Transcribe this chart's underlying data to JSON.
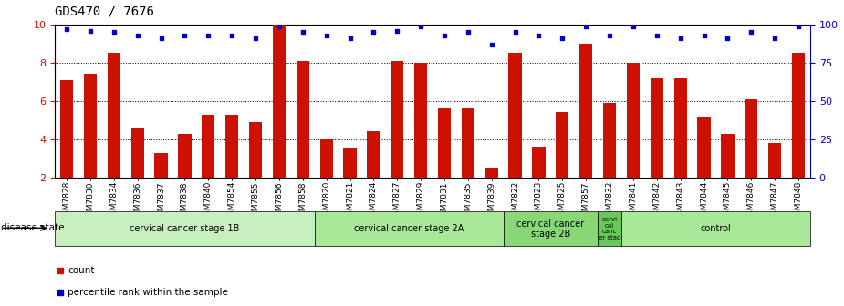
{
  "title": "GDS470 / 7676",
  "samples": [
    "GSM7828",
    "GSM7830",
    "GSM7834",
    "GSM7836",
    "GSM7837",
    "GSM7838",
    "GSM7840",
    "GSM7854",
    "GSM7855",
    "GSM7856",
    "GSM7858",
    "GSM7820",
    "GSM7821",
    "GSM7824",
    "GSM7827",
    "GSM7829",
    "GSM7831",
    "GSM7835",
    "GSM7839",
    "GSM7822",
    "GSM7823",
    "GSM7825",
    "GSM7857",
    "GSM7832",
    "GSM7841",
    "GSM7842",
    "GSM7843",
    "GSM7844",
    "GSM7845",
    "GSM7846",
    "GSM7847",
    "GSM7848"
  ],
  "counts": [
    7.1,
    7.4,
    8.5,
    4.6,
    3.3,
    4.3,
    5.3,
    5.3,
    4.9,
    10.0,
    8.1,
    4.0,
    3.5,
    4.4,
    8.1,
    8.0,
    5.6,
    5.6,
    2.5,
    8.5,
    3.6,
    5.4,
    9.0,
    5.9,
    8.0,
    7.2,
    7.2,
    5.2,
    4.3,
    6.1,
    3.8,
    8.5
  ],
  "percentiles": [
    97,
    96,
    95,
    93,
    91,
    93,
    93,
    93,
    91,
    99,
    95,
    93,
    91,
    95,
    96,
    99,
    93,
    95,
    87,
    95,
    93,
    91,
    99,
    93,
    99,
    93,
    91,
    93,
    91,
    95,
    91,
    99
  ],
  "groups": [
    {
      "label": "cervical cancer stage 1B",
      "start": 0,
      "end": 11,
      "color": "#c8efc0"
    },
    {
      "label": "cervical cancer stage 2A",
      "start": 11,
      "end": 19,
      "color": "#a8e898"
    },
    {
      "label": "cervical cancer\nstage 2B",
      "start": 19,
      "end": 23,
      "color": "#88d878"
    },
    {
      "label": "cervi\ncal\ncanc\ner stag",
      "start": 23,
      "end": 24,
      "color": "#68c858"
    },
    {
      "label": "control",
      "start": 24,
      "end": 32,
      "color": "#a8e898"
    }
  ],
  "bar_color": "#cc1100",
  "dot_color": "#0000cc",
  "ylim_left": [
    2,
    10
  ],
  "ylim_right": [
    0,
    100
  ],
  "yticks_left": [
    2,
    4,
    6,
    8,
    10
  ],
  "yticks_right": [
    0,
    25,
    50,
    75,
    100
  ],
  "title_fontsize": 10,
  "tick_fontsize": 6.5,
  "group_fontsize": 8
}
